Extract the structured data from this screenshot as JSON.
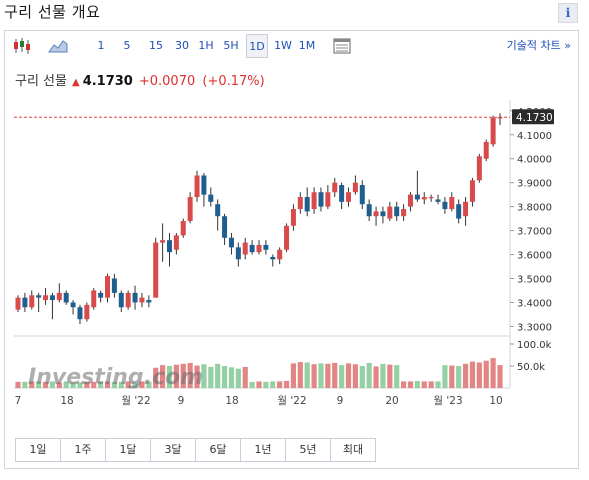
{
  "header": {
    "title": "구리 선물 개요",
    "info_label": "i"
  },
  "toolbar": {
    "intervals": [
      "1",
      "5",
      "15",
      "30",
      "1H",
      "5H",
      "1D",
      "1W",
      "1M"
    ],
    "selected_interval": "1D",
    "advanced_label": "기술적 차트 »"
  },
  "quote": {
    "name": "구리 선물",
    "price": "4.1730",
    "change": "+0.0070",
    "change_pct": "(+0.17%)",
    "direction": "up"
  },
  "colors": {
    "up": "#d94a4a",
    "down": "#1f5f8f",
    "up_vol": "#e38585",
    "down_vol": "#95d0a5",
    "accent": "#1f4fb5"
  },
  "watermark": "Investing.com",
  "chart_data": {
    "type": "candlestick",
    "price_axis": [
      "3.3000",
      "3.4000",
      "3.5000",
      "3.6000",
      "3.7000",
      "3.8000",
      "3.9000",
      "4.0000",
      "4.1000",
      "4.2000"
    ],
    "last_price_label": "4.1730",
    "volume_axis": [
      "50.0k",
      "100.0k"
    ],
    "x_axis": [
      "7",
      "18",
      "월 '22",
      "9",
      "18",
      "월 '22",
      "9",
      "20",
      "월 '23",
      "10"
    ],
    "ylim": [
      3.26,
      4.22
    ],
    "candles": [
      [
        3.37,
        3.42,
        3.43,
        3.36
      ],
      [
        3.42,
        3.38,
        3.44,
        3.36
      ],
      [
        3.38,
        3.43,
        3.45,
        3.37
      ],
      [
        3.43,
        3.42,
        3.44,
        3.36
      ],
      [
        3.41,
        3.43,
        3.46,
        3.39
      ],
      [
        3.43,
        3.41,
        3.44,
        3.33
      ],
      [
        3.41,
        3.44,
        3.48,
        3.4
      ],
      [
        3.44,
        3.4,
        3.45,
        3.39
      ],
      [
        3.4,
        3.38,
        3.41,
        3.35
      ],
      [
        3.38,
        3.33,
        3.39,
        3.31
      ],
      [
        3.33,
        3.39,
        3.4,
        3.32
      ],
      [
        3.38,
        3.45,
        3.46,
        3.37
      ],
      [
        3.44,
        3.42,
        3.45,
        3.4
      ],
      [
        3.42,
        3.51,
        3.52,
        3.4
      ],
      [
        3.5,
        3.44,
        3.52,
        3.42
      ],
      [
        3.44,
        3.38,
        3.45,
        3.36
      ],
      [
        3.38,
        3.44,
        3.45,
        3.37
      ],
      [
        3.44,
        3.4,
        3.47,
        3.37
      ],
      [
        3.4,
        3.42,
        3.44,
        3.38
      ],
      [
        3.41,
        3.4,
        3.43,
        3.38
      ],
      [
        3.42,
        3.65,
        3.67,
        3.42
      ],
      [
        3.65,
        3.66,
        3.73,
        3.57
      ],
      [
        3.66,
        3.61,
        3.69,
        3.55
      ],
      [
        3.62,
        3.68,
        3.69,
        3.6
      ],
      [
        3.68,
        3.74,
        3.75,
        3.67
      ],
      [
        3.74,
        3.84,
        3.86,
        3.73
      ],
      [
        3.84,
        3.93,
        3.95,
        3.82
      ],
      [
        3.93,
        3.85,
        3.94,
        3.8
      ],
      [
        3.85,
        3.82,
        3.88,
        3.8
      ],
      [
        3.81,
        3.76,
        3.83,
        3.7
      ],
      [
        3.76,
        3.67,
        3.77,
        3.64
      ],
      [
        3.67,
        3.63,
        3.69,
        3.6
      ],
      [
        3.63,
        3.58,
        3.65,
        3.55
      ],
      [
        3.6,
        3.65,
        3.67,
        3.58
      ],
      [
        3.64,
        3.61,
        3.66,
        3.6
      ],
      [
        3.61,
        3.64,
        3.66,
        3.6
      ],
      [
        3.64,
        3.62,
        3.66,
        3.6
      ],
      [
        3.59,
        3.58,
        3.6,
        3.55
      ],
      [
        3.58,
        3.62,
        3.63,
        3.56
      ],
      [
        3.62,
        3.72,
        3.73,
        3.61
      ],
      [
        3.72,
        3.79,
        3.81,
        3.7
      ],
      [
        3.79,
        3.84,
        3.86,
        3.77
      ],
      [
        3.84,
        3.78,
        3.88,
        3.76
      ],
      [
        3.79,
        3.86,
        3.88,
        3.77
      ],
      [
        3.86,
        3.8,
        3.88,
        3.78
      ],
      [
        3.8,
        3.86,
        3.89,
        3.79
      ],
      [
        3.86,
        3.9,
        3.92,
        3.84
      ],
      [
        3.89,
        3.82,
        3.9,
        3.79
      ],
      [
        3.82,
        3.86,
        3.88,
        3.8
      ],
      [
        3.86,
        3.9,
        3.93,
        3.85
      ],
      [
        3.89,
        3.81,
        3.91,
        3.79
      ],
      [
        3.81,
        3.76,
        3.83,
        3.74
      ],
      [
        3.76,
        3.78,
        3.8,
        3.72
      ],
      [
        3.78,
        3.76,
        3.8,
        3.73
      ],
      [
        3.75,
        3.8,
        3.82,
        3.74
      ],
      [
        3.8,
        3.76,
        3.82,
        3.74
      ],
      [
        3.76,
        3.79,
        3.81,
        3.74
      ],
      [
        3.8,
        3.85,
        3.86,
        3.78
      ],
      [
        3.85,
        3.83,
        3.95,
        3.82
      ],
      [
        3.83,
        3.84,
        3.86,
        3.81
      ],
      [
        3.84,
        3.84,
        3.85,
        3.82
      ],
      [
        3.83,
        3.82,
        3.85,
        3.81
      ],
      [
        3.82,
        3.79,
        3.84,
        3.77
      ],
      [
        3.79,
        3.84,
        3.86,
        3.78
      ],
      [
        3.81,
        3.75,
        3.83,
        3.73
      ],
      [
        3.76,
        3.82,
        3.84,
        3.72
      ],
      [
        3.82,
        3.91,
        3.92,
        3.8
      ],
      [
        3.91,
        4.01,
        4.02,
        3.9
      ],
      [
        4.0,
        4.07,
        4.08,
        3.99
      ],
      [
        4.06,
        4.17,
        4.18,
        4.05
      ],
      [
        4.17,
        4.173,
        4.19,
        4.14
      ]
    ],
    "volume": [
      14,
      14,
      15,
      15,
      14,
      15,
      13,
      15,
      12,
      13,
      14,
      14,
      14,
      15,
      14,
      14,
      15,
      13,
      15,
      15,
      46,
      52,
      50,
      53,
      55,
      57,
      51,
      54,
      48,
      55,
      50,
      47,
      44,
      48,
      14,
      15,
      14,
      15,
      15,
      16,
      56,
      59,
      58,
      54,
      56,
      55,
      57,
      52,
      56,
      54,
      50,
      57,
      49,
      55,
      53,
      52,
      15,
      15,
      16,
      15,
      15,
      15,
      52,
      51,
      50,
      55,
      60,
      58,
      62,
      68,
      52
    ]
  },
  "periods": [
    "1일",
    "1주",
    "1달",
    "3달",
    "6달",
    "1년",
    "5년",
    "최대"
  ]
}
